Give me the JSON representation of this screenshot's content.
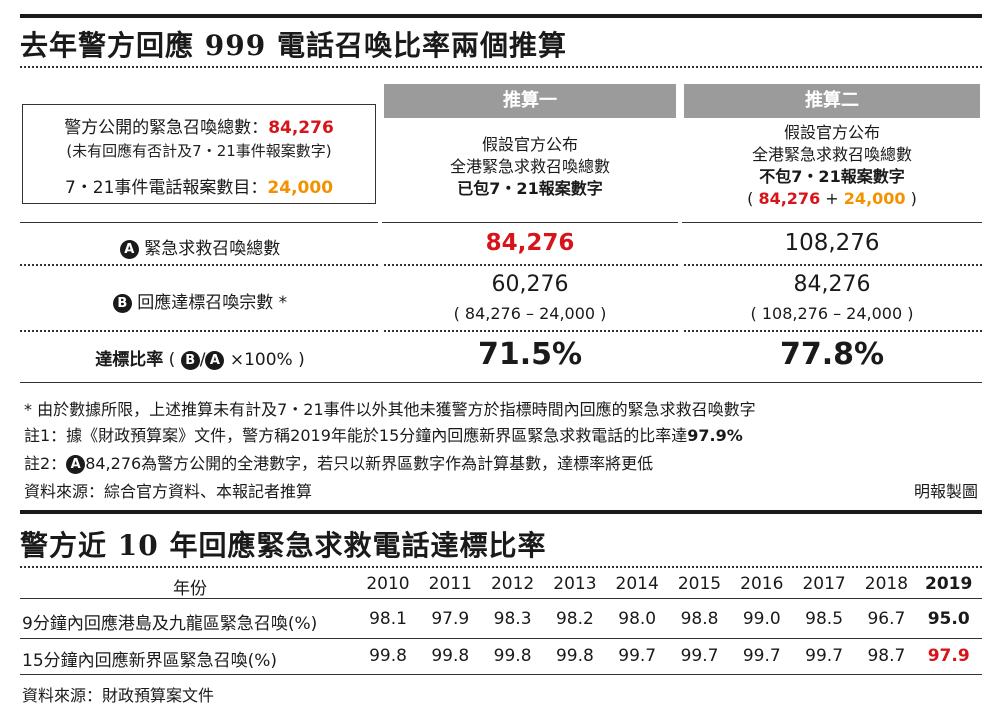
{
  "section1": {
    "title": "去年警方回應 999 電話召喚比率兩個推算",
    "intro": {
      "line1_label": "警方公開的緊急召喚總數：",
      "line1_value": "84,276",
      "line2": "(未有回應有否計及7・21事件報案數字)",
      "line3_label": "7・21事件電話報案數目：",
      "line3_value": "24,000"
    },
    "estimate1": {
      "header": "推算一",
      "desc1": "假設官方公布",
      "desc2": "全港緊急求救召喚總數",
      "desc3": "已包7・21報案數字"
    },
    "estimate2": {
      "header": "推算二",
      "desc1": "假設官方公布",
      "desc2": "全港緊急求救召喚總數",
      "desc3": "不包7・21報案數字",
      "desc4_open": "(",
      "desc4_a": "84,276",
      "desc4_plus": "+",
      "desc4_b": "24,000",
      "desc4_close": ")"
    },
    "rows": {
      "a_badge": "A",
      "a_label": "緊急求救召喚總數",
      "a_v1": "84,276",
      "a_v2": "108,276",
      "b_badge": "B",
      "b_label": "回應達標召喚宗數 *",
      "b_v1": "60,276",
      "b_v1_note": "( 84,276 – 24,000 )",
      "b_v2": "84,276",
      "b_v2_note": "( 108,276 – 24,000 )",
      "rate_label": "達標比率",
      "rate_formula_open": "(",
      "rate_formula_b": "B",
      "rate_formula_slash": "/",
      "rate_formula_a": "A",
      "rate_formula_rest": "×100% )",
      "rate_v1": "71.5%",
      "rate_v2": "77.8%"
    },
    "notes": {
      "n1": "* 由於數據所限，上述推算未有計及7・21事件以外其他未獲警方於指標時間內回應的緊急求救召喚數字",
      "n2_text": "註1：據《財政預算案》文件，警方稱2019年能於15分鐘內回應新界區緊急求救電話的比率達",
      "n2_value": "97.9%",
      "n3_prefix": "註2：",
      "n3_badge": "A",
      "n3_text": "84,276為警方公開的全港數字，若只以新界區數字作為計算基數，達標率將更低",
      "source": "資料來源：綜合官方資料、本報記者推算",
      "credit": "明報製圖"
    }
  },
  "section2": {
    "title": "警方近 10 年回應緊急求救電話達標比率",
    "year_header": "年份",
    "years": [
      "2010",
      "2011",
      "2012",
      "2013",
      "2014",
      "2015",
      "2016",
      "2017",
      "2018",
      "2019"
    ],
    "rows": [
      {
        "label": "9分鐘內回應港島及九龍區緊急召喚(%)",
        "values": [
          "98.1",
          "97.9",
          "98.3",
          "98.2",
          "98.0",
          "98.8",
          "99.0",
          "98.5",
          "96.7",
          "95.0"
        ]
      },
      {
        "label": "15分鐘內回應新界區緊急召喚(%)",
        "values": [
          "99.8",
          "99.8",
          "99.8",
          "99.8",
          "99.7",
          "99.7",
          "99.7",
          "99.7",
          "98.7",
          "97.9"
        ]
      }
    ],
    "source": "資料來源：財政預算案文件"
  },
  "colors": {
    "highlight_red": "#d7141a",
    "highlight_orange": "#f39200",
    "header_grey": "#9b9b9b"
  }
}
